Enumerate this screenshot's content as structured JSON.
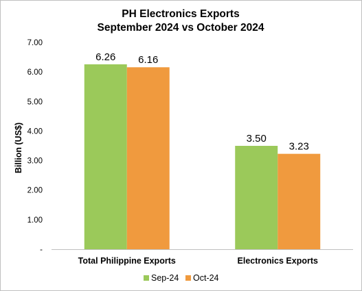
{
  "chart_data": {
    "type": "bar",
    "title_lines": [
      "PH Electronics Exports",
      "September 2024 vs October 2024"
    ],
    "ylabel": "Billion (US$)",
    "xlabel": "",
    "categories": [
      "Total Philippine Exports",
      "Electronics Exports"
    ],
    "series": [
      {
        "name": "Sep-24",
        "color": "#9BC95A",
        "values": [
          6.26,
          3.5
        ],
        "labels": [
          "6.26",
          "3.50"
        ]
      },
      {
        "name": "Oct-24",
        "color": "#F09A3E",
        "values": [
          6.16,
          3.23
        ],
        "labels": [
          "6.16",
          "3.23"
        ]
      }
    ],
    "ylim": [
      0,
      7
    ],
    "yticks": [
      {
        "value": 0,
        "label": "-"
      },
      {
        "value": 1,
        "label": "1.00"
      },
      {
        "value": 2,
        "label": "2.00"
      },
      {
        "value": 3,
        "label": "3.00"
      },
      {
        "value": 4,
        "label": "4.00"
      },
      {
        "value": 5,
        "label": "5.00"
      },
      {
        "value": 6,
        "label": "6.00"
      },
      {
        "value": 7,
        "label": "7.00"
      }
    ],
    "grid": false,
    "legend_position": "bottom"
  }
}
